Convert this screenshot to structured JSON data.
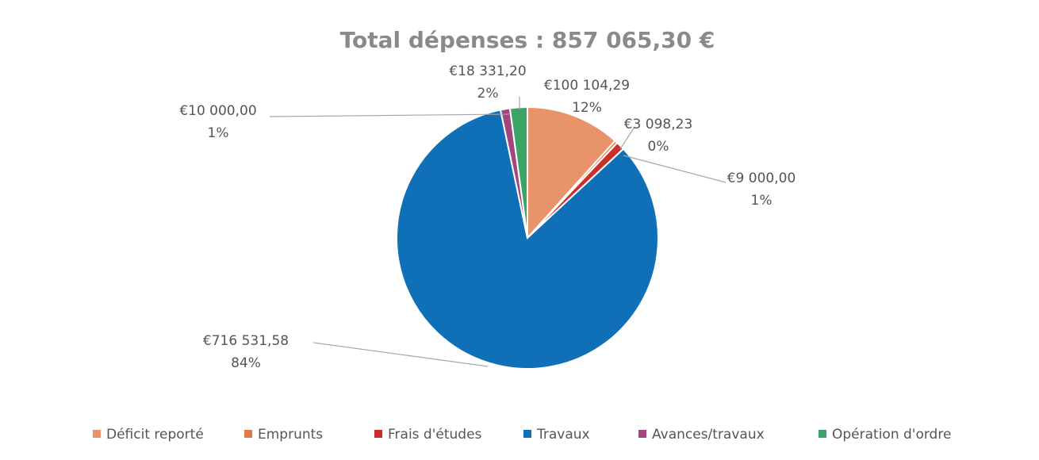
{
  "chart_data": {
    "type": "pie",
    "title": "Total dépenses : 857 065,30 €",
    "categories": [
      "Déficit reporté",
      "Emprunts",
      "Frais d'études",
      "Travaux",
      "Avances/travaux",
      "Opération d'ordre"
    ],
    "values": [
      100104.29,
      3098.23,
      9000.0,
      716531.58,
      10000.0,
      18331.2
    ],
    "value_labels": [
      "€100 104,29",
      "€3 098,23",
      "€9 000,00",
      "€716 531,58",
      "€10 000,00",
      "€18 331,20"
    ],
    "percent_labels": [
      "12%",
      "0%",
      "1%",
      "84%",
      "1%",
      "2%"
    ],
    "colors": [
      "#e8936a",
      "#e07a48",
      "#c9302c",
      "#0f70b7",
      "#a3457e",
      "#3ca565"
    ],
    "legend": "bottom"
  }
}
